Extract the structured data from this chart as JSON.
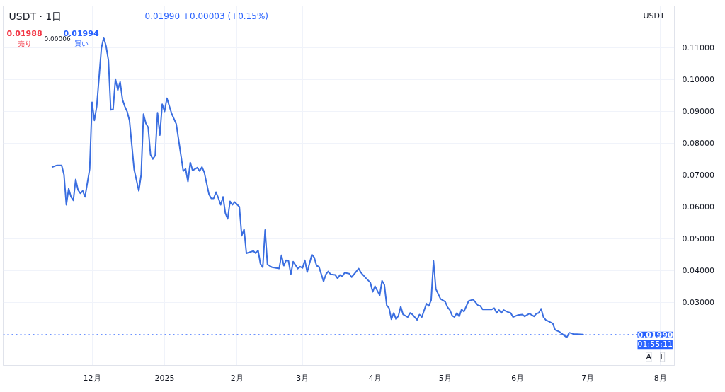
{
  "chart_data": {
    "type": "line",
    "title": "USDT · 1日",
    "x": [
      "2024-11-14",
      "2024-11-16",
      "2024-11-18",
      "2024-11-19",
      "2024-11-20",
      "2024-11-21",
      "2024-11-22",
      "2024-11-23",
      "2024-11-24",
      "2024-11-25",
      "2024-11-26",
      "2024-11-27",
      "2024-11-28",
      "2024-11-30",
      "2024-12-01",
      "2024-12-02",
      "2024-12-03",
      "2024-12-05",
      "2024-12-06",
      "2024-12-07",
      "2024-12-08",
      "2024-12-09",
      "2024-12-10",
      "2024-12-11",
      "2024-12-12",
      "2024-12-13",
      "2024-12-14",
      "2024-12-15",
      "2024-12-16",
      "2024-12-17",
      "2024-12-19",
      "2024-12-21",
      "2024-12-22",
      "2024-12-23",
      "2024-12-24",
      "2024-12-25",
      "2024-12-26",
      "2024-12-27",
      "2024-12-28",
      "2024-12-29",
      "2024-12-30",
      "2024-12-31",
      "2025-01-01",
      "2025-01-02",
      "2025-01-04",
      "2025-01-06",
      "2025-01-09",
      "2025-01-10",
      "2025-01-11",
      "2025-01-12",
      "2025-01-13",
      "2025-01-15",
      "2025-01-16",
      "2025-01-17",
      "2025-01-18",
      "2025-01-20",
      "2025-01-21",
      "2025-01-22",
      "2025-01-23",
      "2025-01-24",
      "2025-01-25",
      "2025-01-26",
      "2025-01-27",
      "2025-01-28",
      "2025-01-29",
      "2025-01-30",
      "2025-01-31",
      "2025-02-02",
      "2025-02-03",
      "2025-02-04",
      "2025-02-05",
      "2025-02-07",
      "2025-02-08",
      "2025-02-09",
      "2025-02-10",
      "2025-02-11",
      "2025-02-12",
      "2025-02-13",
      "2025-02-14",
      "2025-02-16",
      "2025-02-19",
      "2025-02-20",
      "2025-02-21",
      "2025-02-22",
      "2025-02-23",
      "2025-02-24",
      "2025-02-25",
      "2025-02-27",
      "2025-02-28",
      "2025-03-01",
      "2025-03-02",
      "2025-03-03",
      "2025-03-05",
      "2025-03-06",
      "2025-03-07",
      "2025-03-08",
      "2025-03-10",
      "2025-03-11",
      "2025-03-12",
      "2025-03-13",
      "2025-03-15",
      "2025-03-16",
      "2025-03-17",
      "2025-03-18",
      "2025-03-19",
      "2025-03-21",
      "2025-03-22",
      "2025-03-25",
      "2025-03-26",
      "2025-03-28",
      "2025-03-30",
      "2025-03-31",
      "2025-04-01",
      "2025-04-03",
      "2025-04-04",
      "2025-04-05",
      "2025-04-06",
      "2025-04-07",
      "2025-04-08",
      "2025-04-09",
      "2025-04-10",
      "2025-04-11",
      "2025-04-12",
      "2025-04-13",
      "2025-04-15",
      "2025-04-16",
      "2025-04-17",
      "2025-04-19",
      "2025-04-20",
      "2025-04-21",
      "2025-04-23",
      "2025-04-24",
      "2025-04-25",
      "2025-04-26",
      "2025-04-27",
      "2025-04-29",
      "2025-05-01",
      "2025-05-02",
      "2025-05-03",
      "2025-05-04",
      "2025-05-05",
      "2025-05-06",
      "2025-05-07",
      "2025-05-08",
      "2025-05-09",
      "2025-05-11",
      "2025-05-13",
      "2025-05-14",
      "2025-05-15",
      "2025-05-16",
      "2025-05-17",
      "2025-05-19",
      "2025-05-21",
      "2025-05-22",
      "2025-05-23",
      "2025-05-24",
      "2025-05-25",
      "2025-05-26",
      "2025-05-28",
      "2025-05-29",
      "2025-05-30",
      "2025-06-01",
      "2025-06-03",
      "2025-06-04",
      "2025-06-06",
      "2025-06-08",
      "2025-06-09",
      "2025-06-10",
      "2025-06-11",
      "2025-06-12",
      "2025-06-13",
      "2025-06-16",
      "2025-06-17",
      "2025-06-19",
      "2025-06-20",
      "2025-06-22",
      "2025-06-23",
      "2025-06-25",
      "2025-06-29"
    ],
    "series": [
      {
        "color": "#3a6ee0",
        "values": [
          0.0725,
          0.073,
          0.073,
          0.0701,
          0.0606,
          0.0657,
          0.0631,
          0.062,
          0.0686,
          0.0653,
          0.0642,
          0.065,
          0.0631,
          0.0719,
          0.0928,
          0.0871,
          0.0915,
          0.1098,
          0.1131,
          0.1104,
          0.106,
          0.0904,
          0.0906,
          0.1001,
          0.0966,
          0.0992,
          0.0937,
          0.0915,
          0.0899,
          0.0871,
          0.0717,
          0.065,
          0.0701,
          0.0891,
          0.0862,
          0.0849,
          0.0763,
          0.075,
          0.0761,
          0.0895,
          0.0825,
          0.0922,
          0.0899,
          0.0941,
          0.0893,
          0.086,
          0.0712,
          0.0719,
          0.0679,
          0.0739,
          0.0714,
          0.0723,
          0.0712,
          0.0725,
          0.0708,
          0.0639,
          0.0626,
          0.0626,
          0.0646,
          0.0628,
          0.0606,
          0.0631,
          0.058,
          0.0562,
          0.0617,
          0.0606,
          0.0615,
          0.06,
          0.0509,
          0.0529,
          0.0454,
          0.0459,
          0.0461,
          0.0454,
          0.0463,
          0.0421,
          0.041,
          0.0527,
          0.0419,
          0.041,
          0.0406,
          0.0448,
          0.0415,
          0.0432,
          0.043,
          0.0388,
          0.0428,
          0.0406,
          0.0412,
          0.0408,
          0.0432,
          0.0395,
          0.045,
          0.0441,
          0.0415,
          0.0412,
          0.0366,
          0.0388,
          0.0397,
          0.0388,
          0.0386,
          0.0375,
          0.0386,
          0.0381,
          0.0393,
          0.039,
          0.0379,
          0.0406,
          0.0393,
          0.0377,
          0.0362,
          0.0333,
          0.0351,
          0.0322,
          0.0368,
          0.0355,
          0.0291,
          0.0282,
          0.0247,
          0.0267,
          0.0247,
          0.0258,
          0.0287,
          0.0262,
          0.0254,
          0.0267,
          0.0262,
          0.0245,
          0.0262,
          0.0254,
          0.0296,
          0.0289,
          0.0307,
          0.043,
          0.0342,
          0.0311,
          0.0302,
          0.0285,
          0.0276,
          0.0258,
          0.0254,
          0.0267,
          0.0256,
          0.0278,
          0.0271,
          0.0304,
          0.0309,
          0.03,
          0.0291,
          0.0289,
          0.0278,
          0.0278,
          0.0278,
          0.0282,
          0.0267,
          0.0276,
          0.0267,
          0.0276,
          0.0269,
          0.0267,
          0.0254,
          0.026,
          0.0262,
          0.0256,
          0.0265,
          0.0256,
          0.0265,
          0.0267,
          0.028,
          0.0254,
          0.0245,
          0.0234,
          0.0214,
          0.0207,
          0.0201,
          0.019,
          0.0205,
          0.0201,
          0.0199
        ]
      }
    ],
    "xlim": [
      "2024-10-24",
      "2025-08-07"
    ],
    "xticks": [
      {
        "value": "2024-12-01",
        "label": "12月"
      },
      {
        "value": "2025-01-01",
        "label": "2025"
      },
      {
        "value": "2025-02-01",
        "label": "2月"
      },
      {
        "value": "2025-03-01",
        "label": "3月"
      },
      {
        "value": "2025-04-01",
        "label": "4月"
      },
      {
        "value": "2025-05-01",
        "label": "5月"
      },
      {
        "value": "2025-06-01",
        "label": "6月"
      },
      {
        "value": "2025-07-01",
        "label": "7月"
      },
      {
        "value": "2025-08-01",
        "label": "8月"
      }
    ],
    "ylim": [
      0.0102,
      0.123
    ],
    "yticks": [
      {
        "value": 0.03,
        "label": "0.03000"
      },
      {
        "value": 0.04,
        "label": "0.04000"
      },
      {
        "value": 0.05,
        "label": "0.05000"
      },
      {
        "value": 0.06,
        "label": "0.06000"
      },
      {
        "value": 0.07,
        "label": "0.07000"
      },
      {
        "value": 0.08,
        "label": "0.08000"
      },
      {
        "value": 0.09,
        "label": "0.09000"
      },
      {
        "value": 0.1,
        "label": "0.10000"
      },
      {
        "value": 0.11,
        "label": "0.11000"
      }
    ],
    "ref_lines": [
      {
        "axis": "y",
        "value": 0.0199,
        "label": "0.01990",
        "color": "#2962ff",
        "line_style": "dotted"
      }
    ],
    "annotations": [
      "0.01990 +0.00003 (+0.15%)",
      "0.01988",
      "売り",
      "0.00006",
      "0.01994",
      "買い",
      "01:55:11",
      "USDT",
      "A",
      "L"
    ],
    "grid": true,
    "line_style": "solid"
  }
}
